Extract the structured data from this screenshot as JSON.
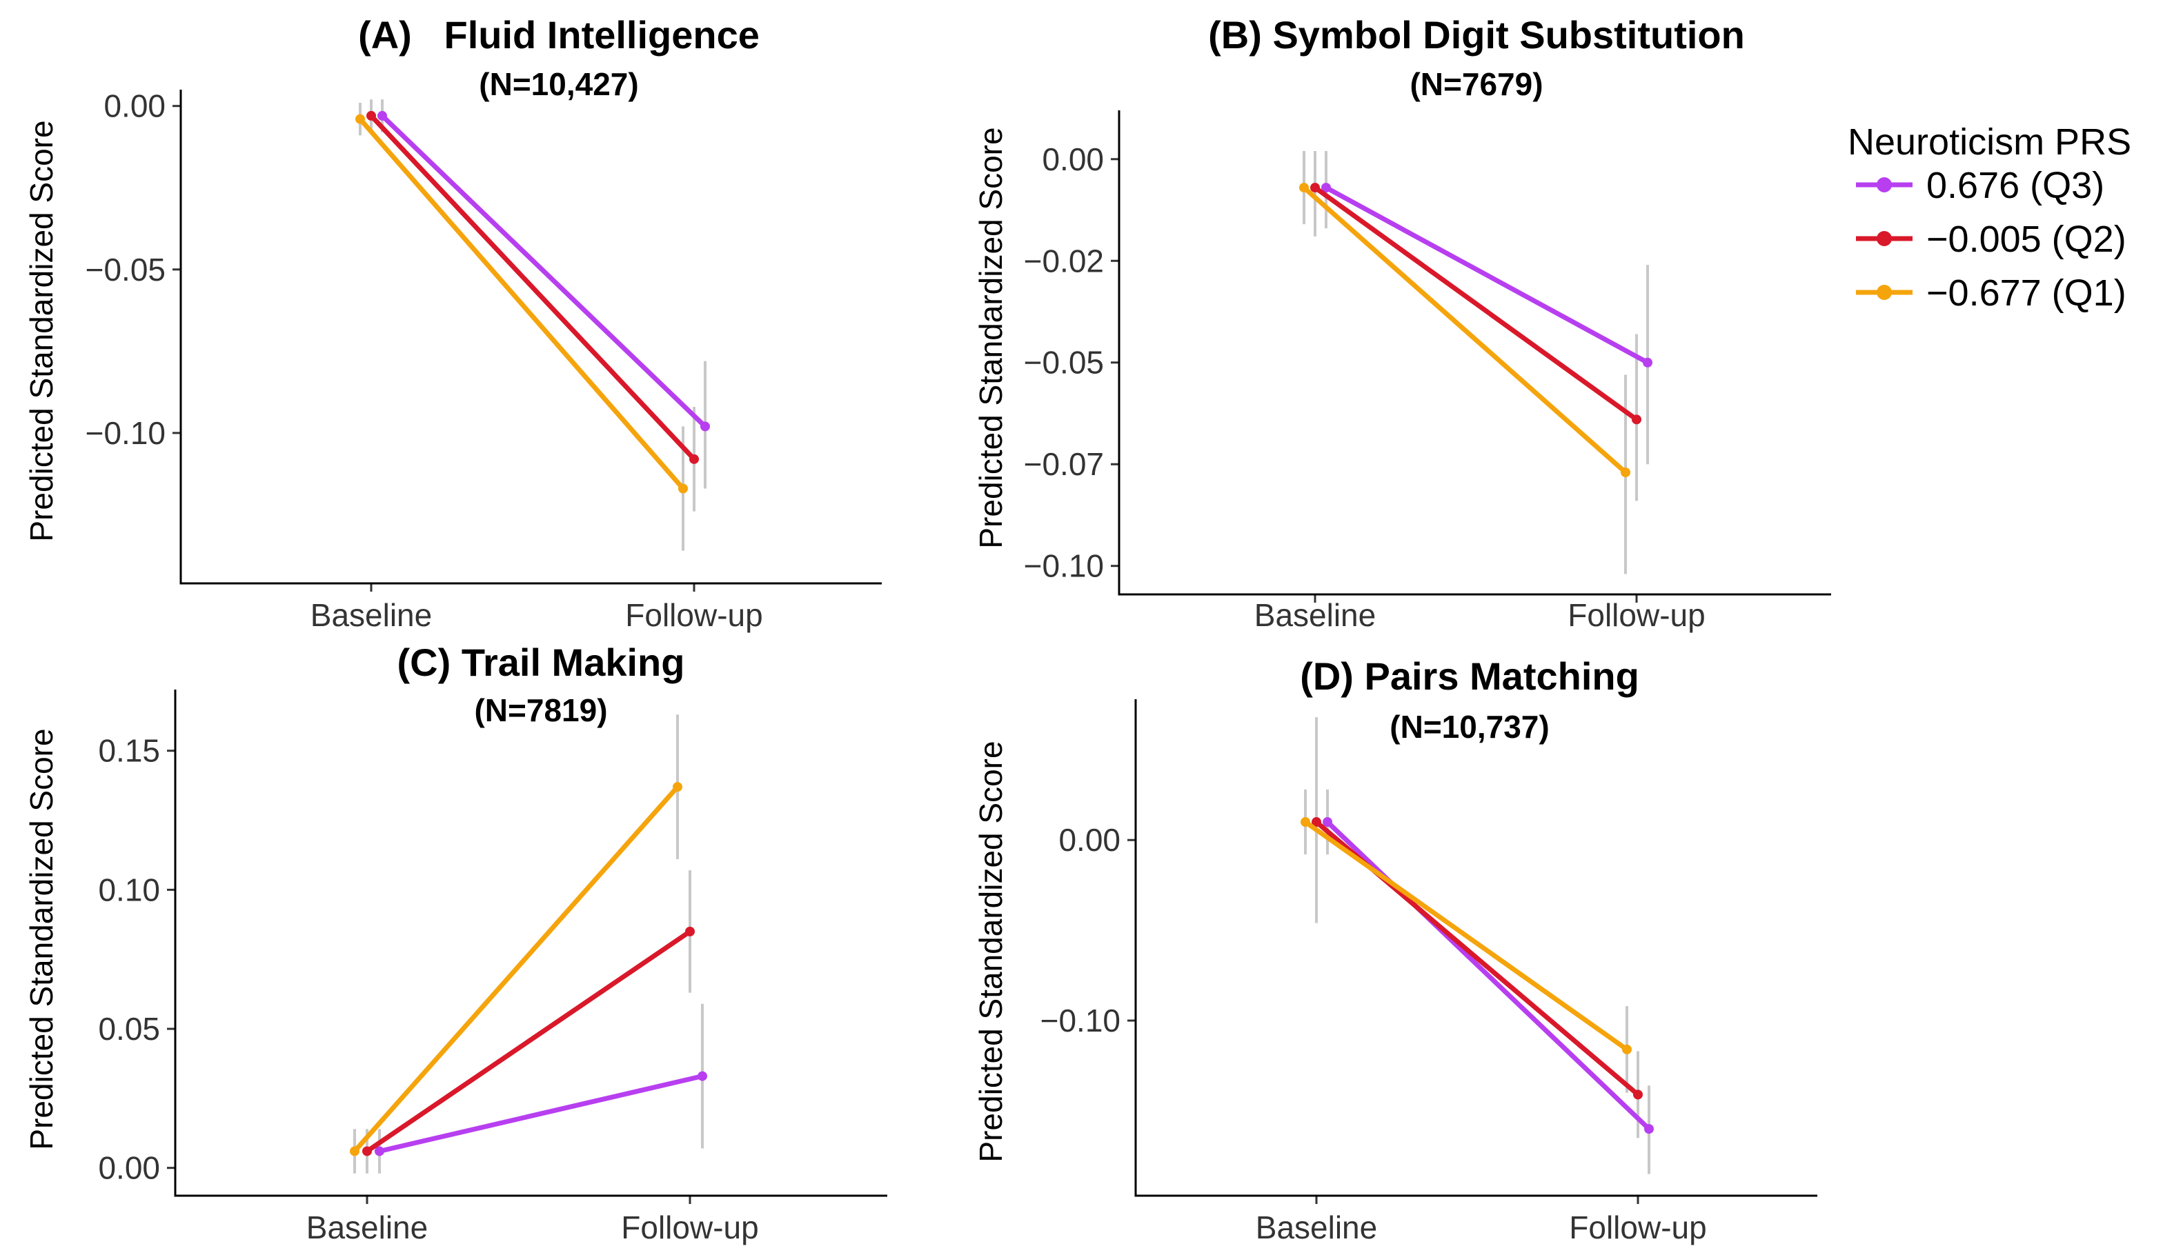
{
  "legend": {
    "title": "Neuroticism PRS",
    "entries": [
      {
        "label": "0.676 (Q3)",
        "color": "#b73ff0"
      },
      {
        "label": "−0.005 (Q2)",
        "color": "#d9182a"
      },
      {
        "label": "−0.677 (Q1)",
        "color": "#f5a40c"
      }
    ]
  },
  "chart_data": [
    {
      "type": "line",
      "title": "(A)   Fluid Intelligence",
      "subtitle": "(N=10,427)",
      "ylabel": "Predicted Standardized Score",
      "categories": [
        "Baseline",
        "Follow-up"
      ],
      "ylim": [
        -0.146,
        0.005
      ],
      "yticks": [
        0.0,
        -0.05,
        -0.1
      ],
      "ytick_labels": [
        "0.00",
        "−0.05",
        "−0.10"
      ],
      "series": [
        {
          "name": "0.676 (Q3)",
          "values": [
            -0.003,
            -0.098
          ],
          "err_low": [
            -0.008,
            -0.117
          ],
          "err_high": [
            0.002,
            -0.078
          ]
        },
        {
          "name": "−0.005 (Q2)",
          "values": [
            -0.003,
            -0.108
          ],
          "err_low": [
            -0.008,
            -0.124
          ],
          "err_high": [
            0.002,
            -0.092
          ]
        },
        {
          "name": "−0.677 (Q1)",
          "values": [
            -0.004,
            -0.117
          ],
          "err_low": [
            -0.009,
            -0.136
          ],
          "err_high": [
            0.001,
            -0.098
          ]
        }
      ]
    },
    {
      "type": "line",
      "title": "(B) Symbol Digit Substitution",
      "subtitle": "(N=7679)",
      "ylabel": "Predicted Standardized Score",
      "categories": [
        "Baseline",
        "Follow-up"
      ],
      "ylim": [
        -0.107,
        0.012
      ],
      "yticks": [
        0.0,
        -0.025,
        -0.05,
        -0.075,
        -0.1
      ],
      "ytick_labels": [
        "0.00",
        "−0.02",
        "−0.05",
        "−0.07",
        "−0.10"
      ],
      "series": [
        {
          "name": "0.676 (Q3)",
          "values": [
            -0.007,
            -0.05
          ],
          "err_low": [
            -0.017,
            -0.075
          ],
          "err_high": [
            0.002,
            -0.026
          ]
        },
        {
          "name": "−0.005 (Q2)",
          "values": [
            -0.007,
            -0.064
          ],
          "err_low": [
            -0.019,
            -0.084
          ],
          "err_high": [
            0.002,
            -0.043
          ]
        },
        {
          "name": "−0.677 (Q1)",
          "values": [
            -0.007,
            -0.077
          ],
          "err_low": [
            -0.016,
            -0.102
          ],
          "err_high": [
            0.002,
            -0.053
          ]
        }
      ]
    },
    {
      "type": "line",
      "title": "(C) Trail Making",
      "subtitle": "(N=7819)",
      "ylabel": "Predicted Standardized Score",
      "categories": [
        "Baseline",
        "Follow-up"
      ],
      "ylim": [
        -0.01,
        0.172
      ],
      "yticks": [
        0.0,
        0.05,
        0.1,
        0.15
      ],
      "ytick_labels": [
        "0.00",
        "0.05",
        "0.10",
        "0.15"
      ],
      "series": [
        {
          "name": "0.676 (Q3)",
          "values": [
            0.006,
            0.033
          ],
          "err_low": [
            -0.002,
            0.007
          ],
          "err_high": [
            0.014,
            0.059
          ]
        },
        {
          "name": "−0.005 (Q2)",
          "values": [
            0.006,
            0.085
          ],
          "err_low": [
            -0.002,
            0.063
          ],
          "err_high": [
            0.014,
            0.107
          ]
        },
        {
          "name": "−0.677 (Q1)",
          "values": [
            0.006,
            0.137
          ],
          "err_low": [
            -0.002,
            0.111
          ],
          "err_high": [
            0.014,
            0.163
          ]
        }
      ]
    },
    {
      "type": "line",
      "title": "(D) Pairs Matching",
      "subtitle": "(N=10,737)",
      "ylabel": "Predicted Standardized Score",
      "categories": [
        "Baseline",
        "Follow-up"
      ],
      "ylim": [
        -0.197,
        0.078
      ],
      "yticks": [
        0.0,
        -0.1
      ],
      "ytick_labels": [
        "0.00",
        "−0.10"
      ],
      "series": [
        {
          "name": "0.676 (Q3)",
          "values": [
            0.01,
            -0.16
          ],
          "err_low": [
            -0.008,
            -0.185
          ],
          "err_high": [
            0.028,
            -0.136
          ]
        },
        {
          "name": "−0.005 (Q2)",
          "values": [
            0.01,
            -0.141
          ],
          "err_low": [
            -0.046,
            -0.165
          ],
          "err_high": [
            0.068,
            -0.117
          ]
        },
        {
          "name": "−0.677 (Q1)",
          "values": [
            0.01,
            -0.116
          ],
          "err_low": [
            -0.008,
            -0.14
          ],
          "err_high": [
            0.028,
            -0.092
          ]
        }
      ]
    }
  ]
}
